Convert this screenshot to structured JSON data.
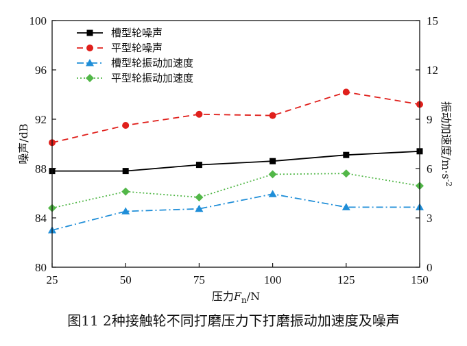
{
  "caption": "图11 2种接触轮不同打磨压力下打磨振动加速度及噪声",
  "chart_data": {
    "type": "line",
    "title": "",
    "xlabel": "压力F_n/N",
    "xlabel_parts": {
      "main": "压力",
      "var": "F",
      "sub": "n",
      "unit": "/N"
    },
    "ylabel_left": "噪声/dB",
    "ylabel_right": "振动加速度/m·s",
    "ylabel_right_sup": "-2",
    "x": [
      25,
      50,
      75,
      100,
      125,
      150
    ],
    "x_ticks": [
      "25",
      "50",
      "75",
      "100",
      "125",
      "150"
    ],
    "xlim": [
      25,
      150
    ],
    "ylim_left": [
      80,
      100
    ],
    "y_ticks_left": [
      "80",
      "84",
      "88",
      "92",
      "96",
      "100"
    ],
    "ylim_right": [
      0,
      15
    ],
    "y_ticks_right": [
      "0",
      "3",
      "6",
      "9",
      "12",
      "15"
    ],
    "legend_position": "top-left",
    "series": [
      {
        "name": "槽型轮噪声",
        "axis": "left",
        "color": "#000000",
        "dash": "solid",
        "marker": "square",
        "values": [
          87.8,
          87.8,
          88.3,
          88.6,
          89.1,
          89.4
        ]
      },
      {
        "name": "平型轮噪声",
        "axis": "left",
        "color": "#e0201c",
        "dash": "dash",
        "marker": "circle",
        "values": [
          90.1,
          91.5,
          92.4,
          92.3,
          94.2,
          93.2
        ]
      },
      {
        "name": "槽型轮振动加速度",
        "axis": "right",
        "color": "#1f8ed8",
        "dash": "dashdot",
        "marker": "triangle",
        "values": [
          2.25,
          3.4,
          3.55,
          4.45,
          3.65,
          3.65
        ]
      },
      {
        "name": "平型轮振动加速度",
        "axis": "right",
        "color": "#52b748",
        "dash": "dot",
        "marker": "diamond",
        "values": [
          3.6,
          4.6,
          4.25,
          5.65,
          5.7,
          4.95
        ]
      }
    ]
  }
}
